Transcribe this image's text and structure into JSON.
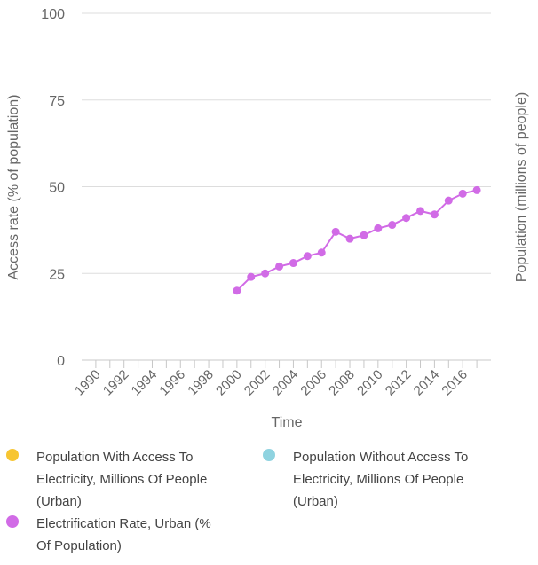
{
  "chart_data": {
    "type": "line",
    "xlabel": "Time",
    "ylabel_left": "Access rate (% of population)",
    "ylabel_right": "Population (millions of people)",
    "ylim": [
      0,
      100
    ],
    "y_ticks": [
      "100",
      "75",
      "50",
      "25",
      "0"
    ],
    "y_tick_values": [
      100,
      75,
      50,
      25,
      0
    ],
    "x_range": [
      1989,
      2018
    ],
    "x_ticks": [
      "1990",
      "1992",
      "1994",
      "1996",
      "1998",
      "2000",
      "2002",
      "2004",
      "2006",
      "2008",
      "2010",
      "2012",
      "2014",
      "2016"
    ],
    "x_tick_values": [
      1990,
      1992,
      1994,
      1996,
      1998,
      2000,
      2002,
      2004,
      2006,
      2008,
      2010,
      2012,
      2014,
      2016
    ],
    "series": [
      {
        "name": "Electrification Rate, Urban (% Of Population)",
        "color": "#d16be6",
        "x": [
          2000,
          2001,
          2002,
          2003,
          2004,
          2005,
          2006,
          2007,
          2008,
          2009,
          2010,
          2011,
          2012,
          2013,
          2014,
          2015,
          2016,
          2017
        ],
        "values": [
          20,
          24,
          25,
          27,
          28,
          30,
          31,
          37,
          35,
          36,
          38,
          39,
          41,
          43,
          42,
          46,
          48,
          49
        ]
      }
    ]
  },
  "legend": {
    "items": [
      {
        "label_line1": "Population With Access To",
        "label_line2": "Electricity, Millions Of People",
        "label_line3": "(Urban)",
        "color": "#f7c531"
      },
      {
        "label_line1": "Population Without Access To",
        "label_line2": "Electricity, Millions Of People",
        "label_line3": "(Urban)",
        "color": "#8fd3e0"
      },
      {
        "label_line1": "Electrification Rate, Urban (%",
        "label_line2": "Of Population)",
        "label_line3": "",
        "color": "#d16be6"
      }
    ]
  }
}
